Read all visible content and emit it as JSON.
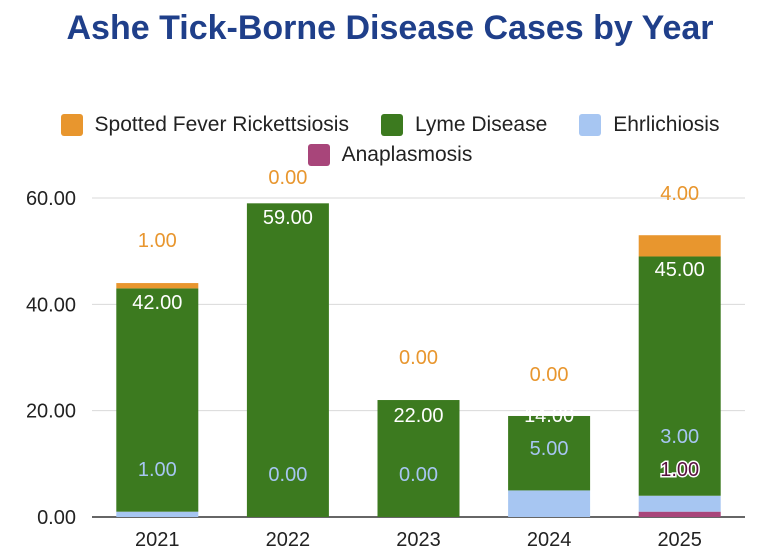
{
  "chart_data": {
    "type": "bar",
    "stacked": true,
    "title": "Ashe Tick-Borne Disease Cases by Year",
    "categories": [
      "2021",
      "2022",
      "2023",
      "2024",
      "2025"
    ],
    "ylim": [
      0,
      60
    ],
    "yticks": [
      "0.00",
      "20.00",
      "40.00",
      "60.00"
    ],
    "grid": true,
    "legend_position": "top",
    "series": [
      {
        "name": "Anaplasmosis",
        "color": "#a8457a",
        "values": [
          0,
          0,
          0,
          0,
          1
        ],
        "labels": [
          "",
          "",
          "",
          "",
          "1.00"
        ]
      },
      {
        "name": "Ehrlichiosis",
        "color": "#a7c6f2",
        "values": [
          1,
          0,
          0,
          5,
          3
        ],
        "labels": [
          "1.00",
          "0.00",
          "0.00",
          "5.00",
          "3.00"
        ]
      },
      {
        "name": "Lyme Disease",
        "color": "#3c7a1f",
        "values": [
          42,
          59,
          22,
          14,
          45
        ],
        "labels": [
          "42.00",
          "59.00",
          "22.00",
          "14.00",
          "45.00"
        ]
      },
      {
        "name": "Spotted Fever Rickettsiosis",
        "color": "#e8962e",
        "values": [
          1,
          0,
          0,
          0,
          4
        ],
        "labels": [
          "1.00",
          "0.00",
          "0.00",
          "0.00",
          "4.00"
        ]
      }
    ],
    "legend_order": [
      "Spotted Fever Rickettsiosis",
      "Lyme Disease",
      "Ehrlichiosis",
      "Anaplasmosis"
    ]
  }
}
